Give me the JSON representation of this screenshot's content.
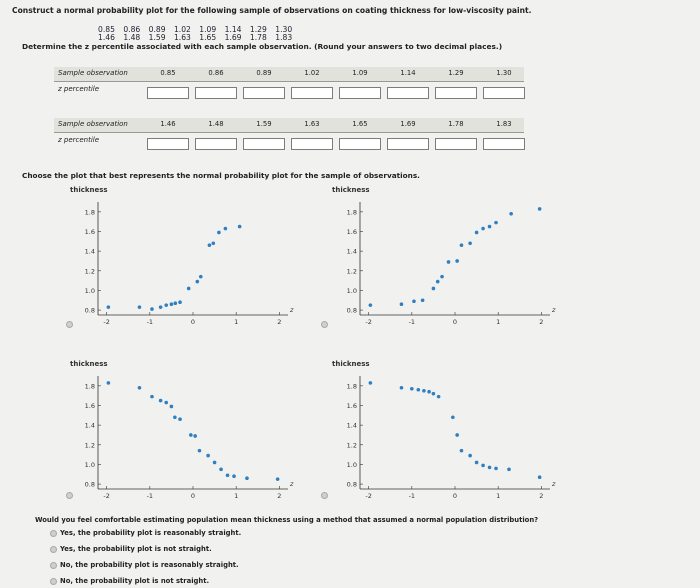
{
  "question": "Construct a normal probability plot for the following sample of observations on coating thickness for low-viscosity paint.",
  "observations_row1": "0.85   0.86   0.89   1.02   1.09   1.14   1.29   1.30",
  "observations_row2": "1.46   1.48   1.59   1.63   1.65   1.69   1.78   1.83",
  "determine_text": "Determine the z percentile associated with each sample observation. (Round your answers to two decimal places.)",
  "table1": {
    "header_label": "Sample observation",
    "row_label": "z percentile",
    "values": [
      "0.85",
      "0.86",
      "0.89",
      "1.02",
      "1.09",
      "1.14",
      "1.29",
      "1.30"
    ]
  },
  "table2": {
    "header_label": "Sample observation",
    "row_label": "z percentile",
    "values": [
      "1.46",
      "1.48",
      "1.59",
      "1.63",
      "1.65",
      "1.69",
      "1.78",
      "1.83"
    ]
  },
  "choose_text": "Choose the plot that best represents the normal probability plot for the sample of observations.",
  "plots": {
    "y_label": "thickness",
    "x_label": "z",
    "x_ticks": [
      "-2",
      "-1",
      "0",
      "1",
      "2"
    ],
    "y_ticks": [
      "1.8",
      "1.6",
      "1.4",
      "1.2",
      "1.0",
      "0.8"
    ]
  },
  "chart_data": [
    {
      "type": "scatter",
      "ylabel": "thickness",
      "xlabel": "z",
      "xlim": [
        -2.2,
        2.2
      ],
      "ylim": [
        0.75,
        1.9
      ],
      "x": [
        -1.96,
        -1.24,
        -0.95,
        -0.75,
        -0.62,
        -0.5,
        -0.41,
        -0.3,
        -0.1,
        0.1,
        0.18,
        0.38,
        0.47,
        0.6,
        0.75,
        1.08
      ],
      "y": [
        0.83,
        0.83,
        0.81,
        0.83,
        0.85,
        0.86,
        0.87,
        0.88,
        1.02,
        1.09,
        1.14,
        1.46,
        1.48,
        1.59,
        1.63,
        1.65
      ]
    },
    {
      "type": "scatter",
      "ylabel": "thickness",
      "xlabel": "z",
      "xlim": [
        -2.2,
        2.2
      ],
      "ylim": [
        0.75,
        1.9
      ],
      "x": [
        -1.96,
        -1.24,
        -0.95,
        -0.75,
        -0.5,
        -0.4,
        -0.3,
        -0.15,
        0.05,
        0.15,
        0.35,
        0.5,
        0.65,
        0.8,
        0.95,
        1.3,
        1.96
      ],
      "y": [
        0.85,
        0.86,
        0.89,
        0.9,
        1.02,
        1.09,
        1.14,
        1.29,
        1.3,
        1.46,
        1.48,
        1.59,
        1.63,
        1.65,
        1.69,
        1.78,
        1.83
      ]
    },
    {
      "type": "scatter",
      "ylabel": "thickness",
      "xlabel": "z",
      "xlim": [
        -2.2,
        2.2
      ],
      "ylim": [
        0.75,
        1.9
      ],
      "x": [
        -1.96,
        -1.24,
        -0.95,
        -0.75,
        -0.62,
        -0.5,
        -0.42,
        -0.3,
        -0.05,
        0.05,
        0.15,
        0.35,
        0.5,
        0.65,
        0.8,
        0.95,
        1.25,
        1.96
      ],
      "y": [
        1.83,
        1.78,
        1.69,
        1.65,
        1.63,
        1.59,
        1.48,
        1.46,
        1.3,
        1.29,
        1.14,
        1.09,
        1.02,
        0.95,
        0.89,
        0.88,
        0.86,
        0.85
      ]
    },
    {
      "type": "scatter",
      "ylabel": "thickness",
      "xlabel": "z",
      "xlim": [
        -2.2,
        2.2
      ],
      "ylim": [
        0.75,
        1.9
      ],
      "x": [
        -1.96,
        -1.24,
        -1.0,
        -0.85,
        -0.72,
        -0.6,
        -0.5,
        -0.38,
        -0.05,
        0.05,
        0.15,
        0.35,
        0.5,
        0.65,
        0.8,
        0.95,
        1.25,
        1.96
      ],
      "y": [
        1.83,
        1.78,
        1.77,
        1.76,
        1.75,
        1.74,
        1.72,
        1.69,
        1.48,
        1.3,
        1.14,
        1.09,
        1.02,
        0.99,
        0.97,
        0.96,
        0.95,
        0.87
      ]
    }
  ],
  "follow_question": "Would you feel comfortable estimating population mean thickness using a method that assumed a normal population distribution?",
  "options": [
    "Yes, the probability plot is reasonably straight.",
    "Yes, the probability plot is not straight.",
    "No, the probability plot is reasonably straight.",
    "No, the probability plot is not straight."
  ],
  "colors": {
    "dot": "#2f7fc1",
    "text": "#222222"
  }
}
